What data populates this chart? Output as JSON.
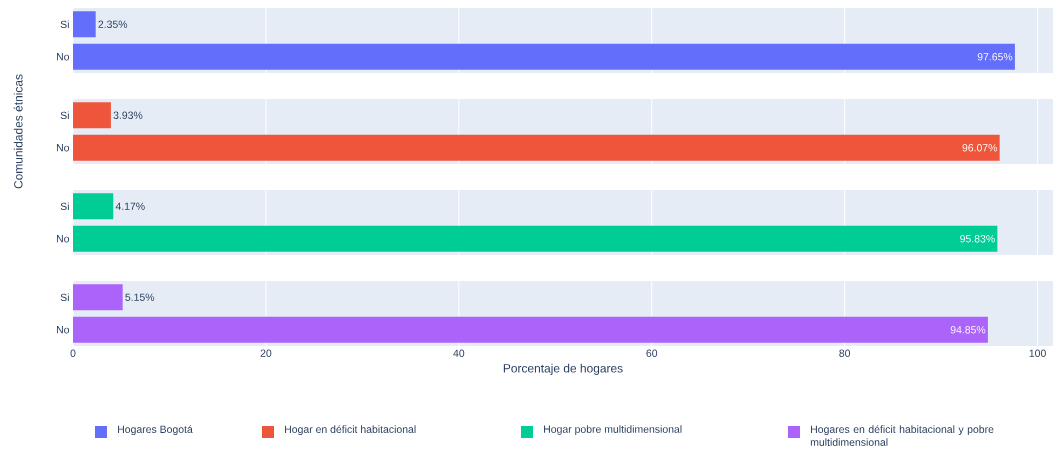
{
  "chart_data": [
    {
      "type": "bar",
      "orientation": "horizontal",
      "categories": [
        "Si",
        "No"
      ],
      "series": [
        {
          "name": "Hogares Bogotá",
          "color": "#636efa",
          "values": [
            2.35,
            97.65
          ],
          "value_labels": [
            "2.35%",
            "97.65%"
          ]
        }
      ],
      "xlim": [
        0,
        101.6
      ],
      "xticks": [
        0,
        20,
        40,
        60,
        80,
        100
      ],
      "grid": "x",
      "tick_labels": "y",
      "legend": "bottom"
    },
    {
      "type": "bar",
      "orientation": "horizontal",
      "categories": [
        "Si",
        "No"
      ],
      "series": [
        {
          "name": "Hogar en déficit habitacional",
          "color": "#ef553b",
          "values": [
            3.93,
            96.07
          ],
          "value_labels": [
            "3.93%",
            "96.07%"
          ]
        }
      ],
      "xlim": [
        0,
        101.6
      ],
      "xticks": [
        0,
        20,
        40,
        60,
        80,
        100
      ],
      "grid": "x",
      "tick_labels": "y",
      "legend": "bottom",
      "ylabel": "Comunidades étnicas"
    },
    {
      "type": "bar",
      "orientation": "horizontal",
      "categories": [
        "Si",
        "No"
      ],
      "series": [
        {
          "name": "Hogar pobre multidimensional",
          "color": "#00cc96",
          "values": [
            4.17,
            95.83
          ],
          "value_labels": [
            "4.17%",
            "95.83%"
          ]
        }
      ],
      "xlim": [
        0,
        101.6
      ],
      "xticks": [
        0,
        20,
        40,
        60,
        80,
        100
      ],
      "grid": "x",
      "tick_labels": "y",
      "legend": "bottom"
    },
    {
      "type": "bar",
      "orientation": "horizontal",
      "categories": [
        "Si",
        "No"
      ],
      "series": [
        {
          "name": "Hogares en déficit habitacional y pobre multidimensional",
          "color": "#ab63fa",
          "values": [
            5.15,
            94.85
          ],
          "value_labels": [
            "5.15%",
            "94.85%"
          ]
        }
      ],
      "xlim": [
        0,
        101.6
      ],
      "xticks": [
        0,
        20,
        40,
        60,
        80,
        100
      ],
      "grid": "x",
      "legend": "bottom",
      "xlabel": "Porcentaje de hogares"
    }
  ]
}
